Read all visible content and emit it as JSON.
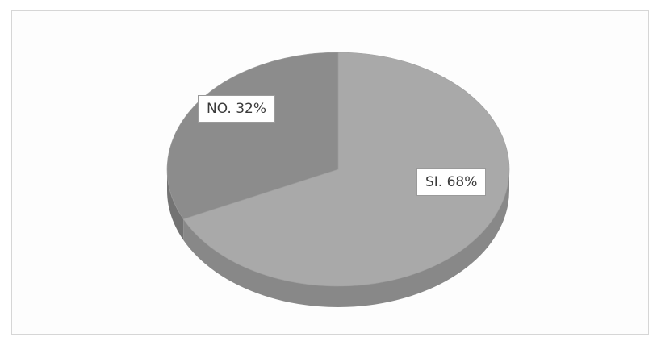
{
  "chart_data": {
    "type": "pie",
    "style": "3d",
    "categories": [
      "SI",
      "NO"
    ],
    "values": [
      68,
      32
    ],
    "unit": "%",
    "data_labels": [
      "SI. 68%",
      "NO. 32%"
    ],
    "title": "",
    "legend": "none",
    "colors": {
      "SI": "#a9a9a9",
      "NO": "#8c8c8c",
      "SI_side": "#888888",
      "NO_side": "#737373"
    }
  }
}
